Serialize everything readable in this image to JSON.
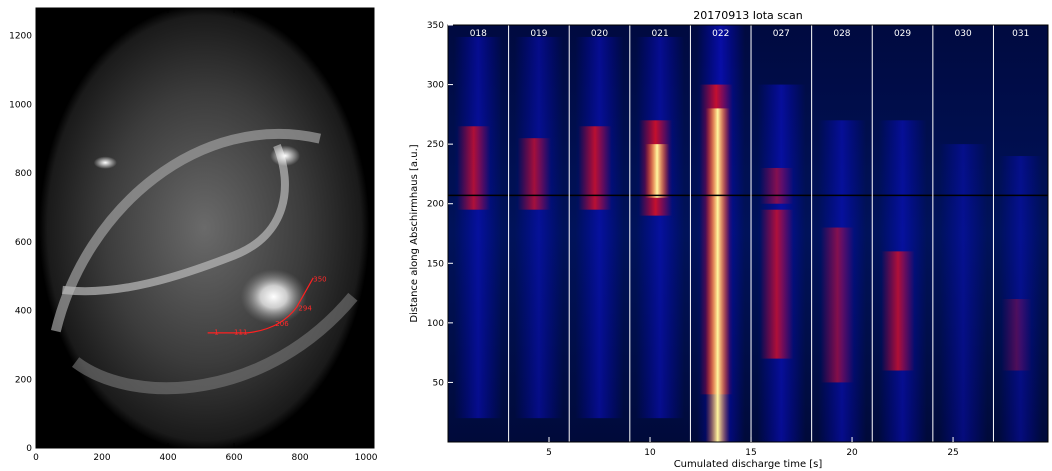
{
  "chart_data": [
    {
      "type": "image",
      "xlim": [
        0,
        1024
      ],
      "ylim": [
        0,
        1280
      ],
      "x_ticks": [
        0,
        200,
        400,
        600,
        800,
        1000
      ],
      "y_ticks": [
        0,
        200,
        400,
        600,
        800,
        1000,
        1200
      ],
      "overlay_line_labels": [
        "1",
        "111",
        "206",
        "294",
        "350"
      ],
      "overlay_color": "#ff2020"
    },
    {
      "type": "heatmap",
      "title": "20170913 Iota scan",
      "xlabel": "Cumulated discharge time [s]",
      "ylabel": "Distance along Abschirmhaus [a.u.]",
      "xlim": [
        0,
        29.7
      ],
      "ylim": [
        0,
        350
      ],
      "x_ticks": [
        5,
        10,
        15,
        20,
        25
      ],
      "y_ticks": [
        50,
        100,
        150,
        200,
        250,
        300,
        350
      ],
      "shots": [
        "018",
        "019",
        "020",
        "021",
        "022",
        "027",
        "028",
        "029",
        "030",
        "031"
      ],
      "shot_boundaries": [
        3.0,
        6.0,
        9.0,
        12.0,
        15.0,
        18.0,
        21.0,
        24.0,
        27.0
      ],
      "colormap": [
        "#000014",
        "#0000ff",
        "#ff0000",
        "#ffff00",
        "#ffffff"
      ],
      "horizontal_line_y": 207
    }
  ]
}
